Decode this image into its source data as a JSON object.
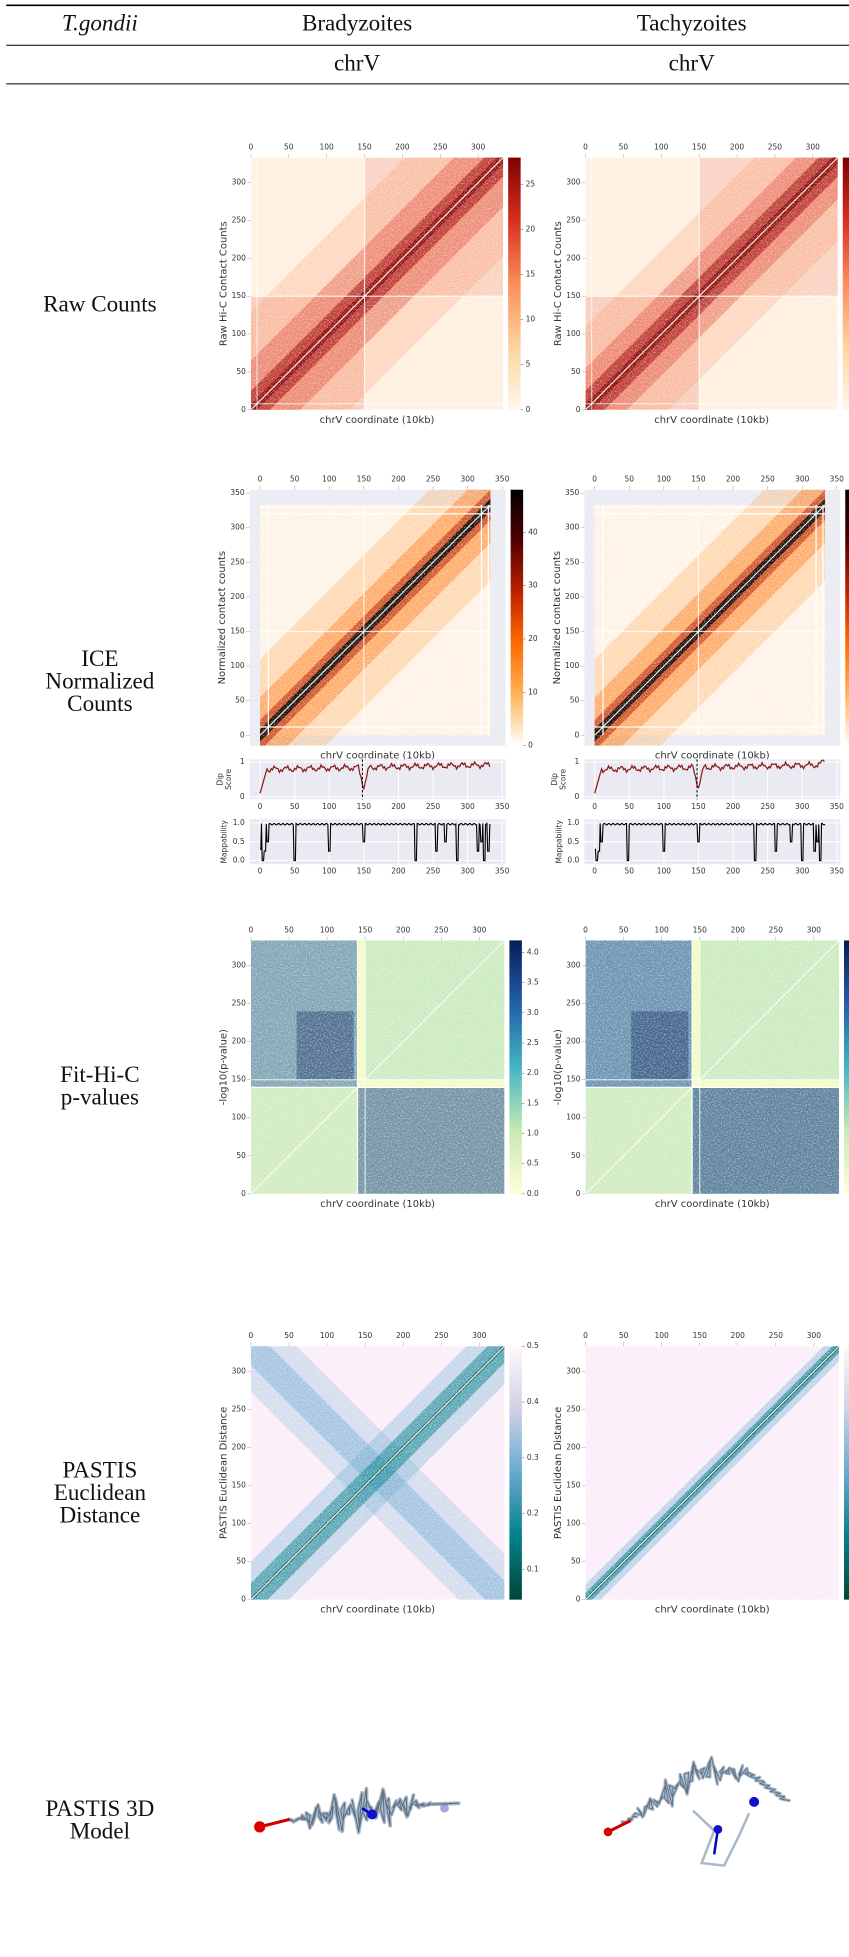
{
  "header": {
    "organism": "T.gondii",
    "columns": [
      "Bradyzoites",
      "Tachyzoites"
    ],
    "chromosomes": [
      "chrV",
      "chrV"
    ]
  },
  "rows": [
    {
      "label": [
        "Raw Counts"
      ],
      "y_label": "Raw Hi-C Contact Counts",
      "x_label": "chrV coordinate (10kb)",
      "axis_lim": [
        0,
        333
      ],
      "axis_ticks": [
        0,
        50,
        100,
        150,
        200,
        250,
        300
      ],
      "colorbar_lim": [
        0,
        28
      ],
      "colorbar_ticks": [
        0,
        5,
        10,
        15,
        20,
        25
      ]
    },
    {
      "label": [
        "ICE",
        "Normalized",
        "Counts"
      ],
      "y_label": "Normalized contact counts",
      "x_label": "chrV coordinate (10kb)",
      "axis_lim": [
        -15,
        355
      ],
      "axis_ticks": [
        0,
        50,
        100,
        150,
        200,
        250,
        300,
        350
      ],
      "colorbar_lim": [
        0,
        48
      ],
      "colorbar_ticks": [
        0,
        10,
        20,
        30,
        40
      ],
      "dip_score": {
        "y_label": [
          "Dip",
          "Score"
        ],
        "ylim": [
          -0.07,
          1.07
        ],
        "yticks": [
          0,
          1
        ],
        "xticks": [
          0,
          50,
          100,
          150,
          200,
          250,
          300,
          350
        ]
      },
      "mappability": {
        "y_label": "Mappability",
        "ylim": [
          -0.1,
          1.1
        ],
        "yticks": [
          {
            "value": 0,
            "label": "0.0"
          },
          {
            "value": 0.5,
            "label": "0.5"
          },
          {
            "value": 1,
            "label": "1.0"
          }
        ],
        "xticks": [
          0,
          50,
          100,
          150,
          200,
          250,
          300,
          350
        ]
      }
    },
    {
      "label": [
        "Fit-Hi-C",
        "p-values"
      ],
      "y_label": "-log10(p-value)",
      "x_label": "chrV coordinate (10kb)",
      "axis_lim": [
        0,
        333
      ],
      "axis_ticks": [
        0,
        50,
        100,
        150,
        200,
        250,
        300
      ],
      "colorbar_lim": [
        0,
        4.2
      ],
      "colorbar_ticks": [
        {
          "value": 0,
          "label": "0.0"
        },
        0.5,
        {
          "value": 1,
          "label": "1.0"
        },
        1.5,
        {
          "value": 2,
          "label": "2.0"
        },
        2.5,
        {
          "value": 3,
          "label": "3.0"
        },
        3.5,
        {
          "value": 4,
          "label": "4.0"
        }
      ]
    },
    {
      "label": [
        "PASTIS",
        "Euclidean",
        "Distance"
      ],
      "y_label": "PASTIS Euclidean Distance",
      "x_label": "chrV coordinate (10kb)",
      "axis_lim": [
        0,
        333
      ],
      "axis_ticks": [
        0,
        50,
        100,
        150,
        200,
        250,
        300
      ],
      "colorbar_lim": [
        0.046,
        0.5
      ],
      "colorbar_ticks": [
        0.1,
        0.2,
        0.3,
        0.4,
        0.5
      ]
    },
    {
      "label": [
        "PASTIS 3D",
        "Model"
      ]
    }
  ]
}
